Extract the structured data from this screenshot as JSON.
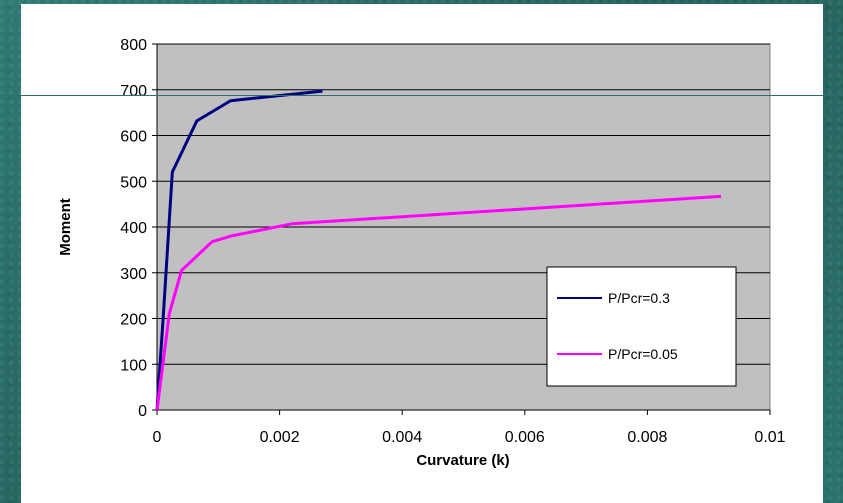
{
  "chart_data": {
    "type": "line",
    "title": "",
    "xlabel": "Curvature (k)",
    "ylabel": "Moment",
    "xlim": [
      0,
      0.01
    ],
    "ylim": [
      0,
      800
    ],
    "x_ticks": [
      "0",
      "0.002",
      "0.004",
      "0.006",
      "0.008",
      "0.01"
    ],
    "y_ticks": [
      "0",
      "100",
      "200",
      "300",
      "400",
      "500",
      "600",
      "700",
      "800"
    ],
    "grid": "horizontal",
    "legend_position": "right",
    "series": [
      {
        "name": "P/Pcr=0.3",
        "color": "#000080",
        "points": [
          [
            0,
            0
          ],
          [
            0.0001,
            200
          ],
          [
            0.00025,
            520
          ],
          [
            0.00065,
            632
          ],
          [
            0.0012,
            676
          ],
          [
            0.0027,
            697
          ]
        ]
      },
      {
        "name": "P/Pcr=0.05",
        "color": "#ff00ff",
        "points": [
          [
            0,
            0
          ],
          [
            0.0002,
            210
          ],
          [
            0.0004,
            305
          ],
          [
            0.0009,
            368
          ],
          [
            0.0012,
            380
          ],
          [
            0.0022,
            407
          ],
          [
            0.0092,
            467
          ]
        ]
      }
    ]
  }
}
